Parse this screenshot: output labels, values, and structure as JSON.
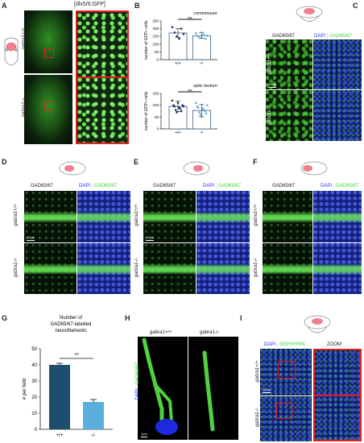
{
  "panels": {
    "A": {
      "label": "A",
      "title": "[dlx5/6:GFP]",
      "row_labels": [
        "gabra1+/+",
        "gabra1-/-"
      ]
    },
    "B": {
      "label": "B",
      "top": {
        "title": "commissure",
        "ylabel": "number of GFP+ cells",
        "sig": "ns",
        "yticks": [
          "0",
          "50",
          "100",
          "150",
          "200",
          "250"
        ],
        "xticks": [
          "+/+",
          "-/-"
        ]
      },
      "bottom": {
        "title": "optic tectum",
        "ylabel": "number of GFP+ cells",
        "sig": "ns",
        "yticks": [
          "0",
          "50",
          "100",
          "150"
        ],
        "xticks": [
          "+/+",
          "-/-"
        ]
      }
    },
    "C": {
      "label": "C",
      "col1": "GAD65/67",
      "col2_dapi": "DAPI",
      "col2_sep": ";",
      "col2_gad": "GAD65/67",
      "row_labels": [
        "gabra1+/+",
        "gabra1-/-"
      ],
      "scale": "10µm"
    },
    "D": {
      "label": "D",
      "col1": "GAD65/67",
      "col2_dapi": "DAPI",
      "col2_sep": ";",
      "col2_gad": "GAD65/67",
      "row_labels": [
        "gabra1+/+",
        "gabra1-/-"
      ],
      "scale": "10µm"
    },
    "E": {
      "label": "E",
      "col1": "GAD65/67",
      "col2_dapi": "DAPI",
      "col2_sep": ";",
      "col2_gad": "GAD65/67",
      "row_labels": [
        "gabra1+/+",
        "gabra1-/-"
      ],
      "scale": "10µm"
    },
    "F": {
      "label": "F",
      "col1": "GAD65/67",
      "col2_dapi": "DAPI",
      "col2_sep": ";",
      "col2_gad": "GAD65/67",
      "row_labels": [
        "gabra1+/+",
        "gabra1-/-"
      ],
      "scale": "10µm"
    },
    "G": {
      "label": "G",
      "sig": "**"
    },
    "H": {
      "label": "H",
      "col1": "gabra1+/+",
      "col2": "gabra1-/-",
      "side_dapi": "DAPI",
      "side_sep": ";",
      "side_gad": "GAD65/67",
      "scale": "1µm"
    },
    "I": {
      "label": "I",
      "col1_dapi": "DAPI",
      "col1_sep": ";",
      "col1_geph": "GEPHYRIN",
      "col2": "ZOOM",
      "row_labels": [
        "gabra1+/+",
        "gabra1-/-"
      ],
      "scale": "10µm"
    }
  },
  "chart_data": [
    {
      "type": "bar",
      "panel": "B-top",
      "title": "commissure",
      "ylabel": "number of GFP+ cells",
      "categories": [
        "+/+",
        "-/-"
      ],
      "values": [
        172,
        155
      ],
      "errors": [
        28,
        18
      ],
      "ylim": [
        0,
        250
      ],
      "yticks": [
        0,
        50,
        100,
        150,
        200,
        250
      ],
      "points": [
        [
          210,
          175,
          150,
          135,
          200,
          165
        ],
        [
          170,
          150,
          140,
          175,
          160,
          135,
          155
        ]
      ]
    },
    {
      "type": "bar",
      "panel": "B-bottom",
      "title": "optic tectum",
      "ylabel": "number of GFP+ cells",
      "categories": [
        "+/+",
        "-/-"
      ],
      "values": [
        95,
        78
      ],
      "errors": [
        22,
        25
      ],
      "ylim": [
        0,
        150
      ],
      "yticks": [
        0,
        50,
        100,
        150
      ],
      "points": [
        [
          120,
          100,
          95,
          80,
          70,
          110,
          90,
          85,
          75,
          100,
          95
        ],
        [
          110,
          95,
          90,
          70,
          60,
          50,
          85,
          80,
          75,
          65,
          100
        ]
      ]
    },
    {
      "type": "bar",
      "panel": "G",
      "title": "Number of GAD65/67-labelled neurofilaments",
      "ylabel": "# per field",
      "categories": [
        "+/+",
        "-/-"
      ],
      "values": [
        40,
        17
      ],
      "errors": [
        1,
        1.5
      ],
      "ylim": [
        0,
        50
      ],
      "yticks": [
        0,
        10,
        20,
        30,
        40,
        50
      ],
      "colors": [
        "#1e4d6e",
        "#5aaedc"
      ]
    }
  ],
  "colors": {
    "red": "#e02020",
    "green": "#3fd23f",
    "blue": "#2030ff",
    "bar_dark": "#1e4d6e",
    "bar_light": "#5aaedc"
  }
}
